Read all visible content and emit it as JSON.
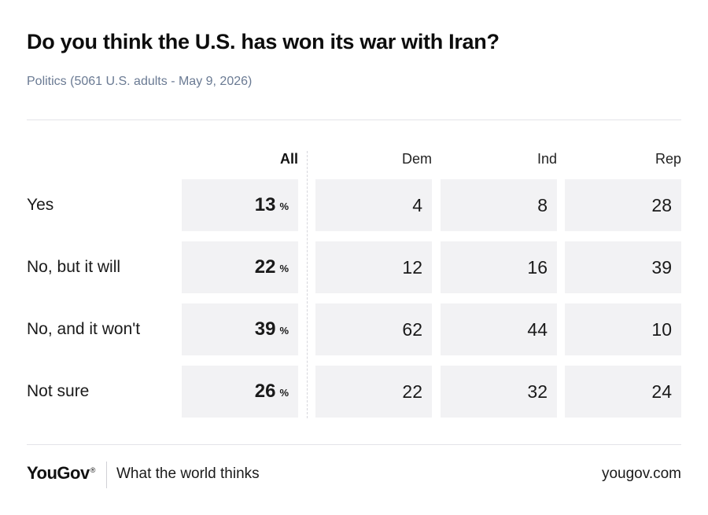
{
  "title": "Do you think the U.S. has won its war with Iran?",
  "subtitle": "Politics (5061 U.S. adults - May 9, 2026)",
  "chart_data": {
    "type": "table",
    "columns": [
      "All",
      "Dem",
      "Ind",
      "Rep"
    ],
    "rows": [
      {
        "label": "Yes",
        "values": [
          13,
          4,
          8,
          28
        ]
      },
      {
        "label": "No, but it will",
        "values": [
          22,
          12,
          16,
          39
        ]
      },
      {
        "label": "No, and it won't",
        "values": [
          39,
          62,
          44,
          10
        ]
      },
      {
        "label": "Not sure",
        "values": [
          26,
          22,
          32,
          24
        ]
      }
    ],
    "unit_all": "%"
  },
  "footer": {
    "logo": "YouGov",
    "registered": "®",
    "tagline": "What the world thinks",
    "url": "yougov.com"
  },
  "colors": {
    "cell_background": "#f2f2f4",
    "subtitle": "#6a7a93",
    "rule": "#e3e3e8"
  }
}
